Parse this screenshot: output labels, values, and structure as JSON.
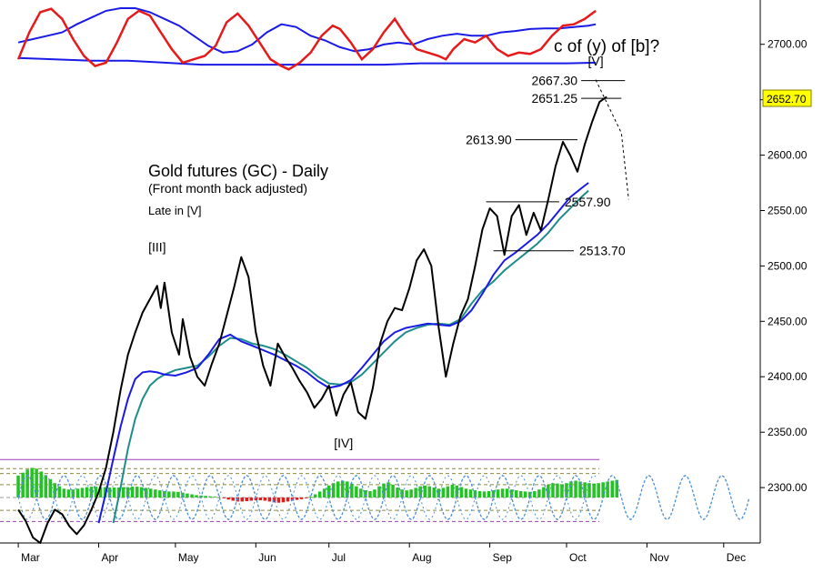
{
  "chart_data": {
    "type": "line",
    "title": "Gold futures (GC) - Daily",
    "subtitle": "(Front month back adjusted)",
    "note": "Late in [V]",
    "question": "c of (y) of [b]?",
    "last_price_label": "2652.70",
    "last_price": 2652.7,
    "ylim": [
      2250,
      2740
    ],
    "y_ticks": [
      {
        "value": 2700,
        "label": "2700.00"
      },
      {
        "value": 2650,
        "label": "2650.00"
      },
      {
        "value": 2600,
        "label": "2600.00"
      },
      {
        "value": 2550,
        "label": "2550.00"
      },
      {
        "value": 2500,
        "label": "2500.00"
      },
      {
        "value": 2450,
        "label": "2450.00"
      },
      {
        "value": 2400,
        "label": "2400.00"
      },
      {
        "value": 2350,
        "label": "2350.00"
      },
      {
        "value": 2300,
        "label": "2300.00"
      }
    ],
    "x_ticks": [
      {
        "index": 0,
        "label": "Mar"
      },
      {
        "index": 22,
        "label": "Apr"
      },
      {
        "index": 43,
        "label": "May"
      },
      {
        "index": 65,
        "label": "Jun"
      },
      {
        "index": 85,
        "label": "Jul"
      },
      {
        "index": 107,
        "label": "Aug"
      },
      {
        "index": 129,
        "label": "Sep"
      },
      {
        "index": 150,
        "label": "Oct"
      },
      {
        "index": 172,
        "label": "Nov"
      },
      {
        "index": 193,
        "label": "Dec"
      }
    ],
    "x_range": [
      -5,
      203
    ],
    "price_series": [
      [
        0,
        2280
      ],
      [
        2,
        2270
      ],
      [
        4,
        2255
      ],
      [
        6,
        2250
      ],
      [
        8,
        2268
      ],
      [
        10,
        2280
      ],
      [
        12,
        2276
      ],
      [
        14,
        2265
      ],
      [
        16,
        2258
      ],
      [
        18,
        2266
      ],
      [
        20,
        2280
      ],
      [
        22,
        2296
      ],
      [
        24,
        2318
      ],
      [
        26,
        2350
      ],
      [
        28,
        2388
      ],
      [
        30,
        2420
      ],
      [
        32,
        2440
      ],
      [
        34,
        2458
      ],
      [
        36,
        2470
      ],
      [
        38,
        2482
      ],
      [
        39,
        2462
      ],
      [
        40,
        2485
      ],
      [
        42,
        2440
      ],
      [
        44,
        2420
      ],
      [
        45,
        2452
      ],
      [
        47,
        2418
      ],
      [
        49,
        2400
      ],
      [
        51,
        2392
      ],
      [
        53,
        2412
      ],
      [
        55,
        2430
      ],
      [
        57,
        2455
      ],
      [
        59,
        2480
      ],
      [
        61,
        2508
      ],
      [
        63,
        2490
      ],
      [
        65,
        2440
      ],
      [
        67,
        2410
      ],
      [
        69,
        2392
      ],
      [
        71,
        2430
      ],
      [
        73,
        2418
      ],
      [
        75,
        2408
      ],
      [
        77,
        2396
      ],
      [
        79,
        2386
      ],
      [
        81,
        2372
      ],
      [
        83,
        2380
      ],
      [
        85,
        2392
      ],
      [
        87,
        2365
      ],
      [
        89,
        2384
      ],
      [
        91,
        2395
      ],
      [
        93,
        2368
      ],
      [
        95,
        2362
      ],
      [
        97,
        2390
      ],
      [
        99,
        2430
      ],
      [
        101,
        2450
      ],
      [
        103,
        2462
      ],
      [
        105,
        2460
      ],
      [
        107,
        2480
      ],
      [
        109,
        2505
      ],
      [
        111,
        2515
      ],
      [
        113,
        2500
      ],
      [
        115,
        2445
      ],
      [
        117,
        2400
      ],
      [
        119,
        2430
      ],
      [
        121,
        2455
      ],
      [
        123,
        2470
      ],
      [
        125,
        2500
      ],
      [
        127,
        2533
      ],
      [
        129,
        2552
      ],
      [
        131,
        2545
      ],
      [
        133,
        2510
      ],
      [
        135,
        2545
      ],
      [
        137,
        2555
      ],
      [
        139,
        2528
      ],
      [
        141,
        2548
      ],
      [
        143,
        2532
      ],
      [
        145,
        2560
      ],
      [
        147,
        2590
      ],
      [
        149,
        2612
      ],
      [
        151,
        2600
      ],
      [
        153,
        2585
      ],
      [
        155,
        2610
      ],
      [
        157,
        2630
      ],
      [
        159,
        2648
      ],
      [
        161,
        2652.7
      ]
    ],
    "ma_fast": [
      [
        22,
        2268
      ],
      [
        24,
        2296
      ],
      [
        26,
        2326
      ],
      [
        28,
        2355
      ],
      [
        30,
        2380
      ],
      [
        32,
        2398
      ],
      [
        34,
        2404
      ],
      [
        36,
        2405
      ],
      [
        38,
        2404
      ],
      [
        40,
        2402
      ],
      [
        43,
        2401
      ],
      [
        46,
        2404
      ],
      [
        49,
        2408
      ],
      [
        52,
        2420
      ],
      [
        55,
        2434
      ],
      [
        58,
        2438
      ],
      [
        61,
        2432
      ],
      [
        64,
        2428
      ],
      [
        67,
        2424
      ],
      [
        70,
        2420
      ],
      [
        73,
        2415
      ],
      [
        76,
        2410
      ],
      [
        79,
        2404
      ],
      [
        82,
        2396
      ],
      [
        85,
        2390
      ],
      [
        88,
        2392
      ],
      [
        91,
        2397
      ],
      [
        94,
        2408
      ],
      [
        97,
        2420
      ],
      [
        100,
        2432
      ],
      [
        103,
        2440
      ],
      [
        106,
        2444
      ],
      [
        109,
        2446
      ],
      [
        112,
        2448
      ],
      [
        115,
        2447
      ],
      [
        118,
        2446
      ],
      [
        121,
        2450
      ],
      [
        124,
        2460
      ],
      [
        127,
        2475
      ],
      [
        130,
        2492
      ],
      [
        133,
        2505
      ],
      [
        136,
        2512
      ],
      [
        139,
        2520
      ],
      [
        142,
        2528
      ],
      [
        145,
        2538
      ],
      [
        148,
        2550
      ],
      [
        151,
        2562
      ],
      [
        154,
        2570
      ],
      [
        156,
        2575
      ]
    ],
    "ma_slow": [
      [
        26,
        2268
      ],
      [
        28,
        2300
      ],
      [
        30,
        2335
      ],
      [
        32,
        2362
      ],
      [
        34,
        2380
      ],
      [
        36,
        2392
      ],
      [
        38,
        2398
      ],
      [
        40,
        2402
      ],
      [
        43,
        2406
      ],
      [
        46,
        2408
      ],
      [
        49,
        2410
      ],
      [
        52,
        2418
      ],
      [
        55,
        2428
      ],
      [
        58,
        2435
      ],
      [
        61,
        2434
      ],
      [
        64,
        2430
      ],
      [
        67,
        2428
      ],
      [
        70,
        2425
      ],
      [
        73,
        2420
      ],
      [
        76,
        2414
      ],
      [
        79,
        2408
      ],
      [
        82,
        2400
      ],
      [
        85,
        2394
      ],
      [
        88,
        2393
      ],
      [
        91,
        2395
      ],
      [
        94,
        2402
      ],
      [
        97,
        2412
      ],
      [
        100,
        2422
      ],
      [
        103,
        2432
      ],
      [
        106,
        2440
      ],
      [
        109,
        2444
      ],
      [
        112,
        2447
      ],
      [
        115,
        2448
      ],
      [
        118,
        2447
      ],
      [
        121,
        2452
      ],
      [
        124,
        2466
      ],
      [
        127,
        2478
      ],
      [
        130,
        2486
      ],
      [
        133,
        2496
      ],
      [
        136,
        2504
      ],
      [
        139,
        2512
      ],
      [
        142,
        2520
      ],
      [
        145,
        2530
      ],
      [
        148,
        2542
      ],
      [
        151,
        2552
      ],
      [
        154,
        2562
      ],
      [
        156,
        2568
      ]
    ],
    "level_lines": [
      {
        "label": "2667.30",
        "value": 2667.3,
        "from": 154,
        "to": 166,
        "label_side": "left"
      },
      {
        "label": "2651.25",
        "value": 2651.25,
        "from": 154,
        "to": 165,
        "label_side": "left"
      },
      {
        "label": "2613.90",
        "value": 2613.9,
        "from": 136,
        "to": 153,
        "label_side": "left"
      },
      {
        "label": "2557.90",
        "value": 2557.9,
        "from": 128,
        "to": 148,
        "label_side": "right"
      },
      {
        "label": "2513.70",
        "value": 2513.7,
        "from": 130,
        "to": 152,
        "label_side": "right"
      }
    ],
    "wave_labels": [
      {
        "label": "[III]",
        "x": 38,
        "y": 2513
      },
      {
        "label": "[IV]",
        "x": 89,
        "y": 2336
      },
      {
        "label": "[V]",
        "x": 158,
        "y": 2681
      }
    ],
    "projection": [
      [
        158,
        2668
      ],
      [
        165,
        2620
      ],
      [
        167,
        2560
      ]
    ],
    "top_indicator": {
      "red": [
        [
          0,
          0.2
        ],
        [
          3,
          0.6
        ],
        [
          6,
          0.9
        ],
        [
          9,
          0.95
        ],
        [
          12,
          0.8
        ],
        [
          15,
          0.5
        ],
        [
          18,
          0.25
        ],
        [
          21,
          0.1
        ],
        [
          24,
          0.15
        ],
        [
          27,
          0.45
        ],
        [
          30,
          0.8
        ],
        [
          33,
          0.92
        ],
        [
          36,
          0.85
        ],
        [
          39,
          0.6
        ],
        [
          42,
          0.35
        ],
        [
          45,
          0.15
        ],
        [
          48,
          0.2
        ],
        [
          51,
          0.25
        ],
        [
          54,
          0.4
        ],
        [
          57,
          0.75
        ],
        [
          60,
          0.88
        ],
        [
          63,
          0.7
        ],
        [
          66,
          0.45
        ],
        [
          69,
          0.2
        ],
        [
          72,
          0.1
        ],
        [
          74,
          0.05
        ],
        [
          77,
          0.15
        ],
        [
          80,
          0.3
        ],
        [
          83,
          0.55
        ],
        [
          86,
          0.7
        ],
        [
          88,
          0.65
        ],
        [
          91,
          0.45
        ],
        [
          94,
          0.2
        ],
        [
          97,
          0.35
        ],
        [
          100,
          0.6
        ],
        [
          103,
          0.8
        ],
        [
          106,
          0.55
        ],
        [
          109,
          0.35
        ],
        [
          112,
          0.3
        ],
        [
          115,
          0.25
        ],
        [
          117,
          0.2
        ],
        [
          119,
          0.35
        ],
        [
          122,
          0.5
        ],
        [
          125,
          0.45
        ],
        [
          128,
          0.55
        ],
        [
          131,
          0.35
        ],
        [
          134,
          0.25
        ],
        [
          137,
          0.3
        ],
        [
          140,
          0.28
        ],
        [
          143,
          0.35
        ],
        [
          146,
          0.55
        ],
        [
          149,
          0.7
        ],
        [
          152,
          0.72
        ],
        [
          155,
          0.8
        ],
        [
          158,
          0.92
        ]
      ],
      "blue": [
        [
          0,
          0.45
        ],
        [
          4,
          0.5
        ],
        [
          8,
          0.55
        ],
        [
          12,
          0.6
        ],
        [
          16,
          0.72
        ],
        [
          20,
          0.82
        ],
        [
          24,
          0.92
        ],
        [
          28,
          0.96
        ],
        [
          32,
          0.96
        ],
        [
          36,
          0.9
        ],
        [
          40,
          0.8
        ],
        [
          44,
          0.7
        ],
        [
          48,
          0.55
        ],
        [
          52,
          0.4
        ],
        [
          56,
          0.3
        ],
        [
          60,
          0.32
        ],
        [
          64,
          0.42
        ],
        [
          68,
          0.6
        ],
        [
          72,
          0.72
        ],
        [
          76,
          0.68
        ],
        [
          80,
          0.55
        ],
        [
          84,
          0.48
        ],
        [
          88,
          0.38
        ],
        [
          92,
          0.32
        ],
        [
          96,
          0.35
        ],
        [
          100,
          0.42
        ],
        [
          104,
          0.45
        ],
        [
          108,
          0.42
        ],
        [
          112,
          0.5
        ],
        [
          116,
          0.55
        ],
        [
          120,
          0.58
        ],
        [
          124,
          0.55
        ],
        [
          128,
          0.55
        ],
        [
          132,
          0.6
        ],
        [
          136,
          0.62
        ],
        [
          140,
          0.65
        ],
        [
          144,
          0.66
        ],
        [
          148,
          0.66
        ],
        [
          152,
          0.68
        ],
        [
          156,
          0.7
        ],
        [
          158,
          0.72
        ]
      ],
      "base": [
        [
          0,
          0.22
        ],
        [
          10,
          0.2
        ],
        [
          20,
          0.18
        ],
        [
          30,
          0.18
        ],
        [
          40,
          0.15
        ],
        [
          50,
          0.12
        ],
        [
          60,
          0.12
        ],
        [
          70,
          0.12
        ],
        [
          80,
          0.12
        ],
        [
          90,
          0.12
        ],
        [
          100,
          0.12
        ],
        [
          110,
          0.14
        ],
        [
          120,
          0.14
        ],
        [
          130,
          0.14
        ],
        [
          140,
          0.14
        ],
        [
          150,
          0.14
        ],
        [
          158,
          0.15
        ]
      ]
    },
    "bottom_indicator": {
      "histogram": [
        0.55,
        0.62,
        0.7,
        0.74,
        0.72,
        0.65,
        0.56,
        0.46,
        0.36,
        0.28,
        0.22,
        0.2,
        0.2,
        0.22,
        0.24,
        0.26,
        0.27,
        0.27,
        0.26,
        0.26,
        0.25,
        0.25,
        0.25,
        0.26,
        0.26,
        0.27,
        0.27,
        0.26,
        0.24,
        0.22,
        0.2,
        0.18,
        0.16,
        0.15,
        0.15,
        0.14,
        0.12,
        0.1,
        0.08,
        0.06,
        0.05,
        0.04,
        0.03,
        0.02,
        0.0,
        -0.02,
        -0.05,
        -0.08,
        -0.1,
        -0.1,
        -0.09,
        -0.08,
        -0.07,
        -0.07,
        -0.08,
        -0.1,
        -0.12,
        -0.13,
        -0.12,
        -0.1,
        -0.08,
        -0.06,
        -0.04,
        -0.02,
        0.02,
        0.08,
        0.15,
        0.22,
        0.3,
        0.36,
        0.4,
        0.42,
        0.4,
        0.35,
        0.28,
        0.22,
        0.18,
        0.16,
        0.2,
        0.28,
        0.35,
        0.38,
        0.32,
        0.25,
        0.2,
        0.18,
        0.2,
        0.24,
        0.28,
        0.3,
        0.28,
        0.25,
        0.22,
        0.24,
        0.28,
        0.32,
        0.3,
        0.26,
        0.22,
        0.2,
        0.18,
        0.16,
        0.15,
        0.16,
        0.18,
        0.2,
        0.22,
        0.22,
        0.2,
        0.18,
        0.16,
        0.15,
        0.14,
        0.16,
        0.2,
        0.26,
        0.32,
        0.36,
        0.35,
        0.33,
        0.36,
        0.4,
        0.42,
        0.4,
        0.38,
        0.36,
        0.35,
        0.36,
        0.38,
        0.4,
        0.42,
        0.44
      ],
      "hist_start": 0,
      "hist_step": 1.25,
      "cycle_period": 10,
      "cycle_end": 200,
      "ref_levels": [
        0.95,
        0.72,
        0.6,
        0.32,
        0.0,
        -0.32,
        -0.6
      ]
    },
    "colors": {
      "price": "#000000",
      "ma_fast": "#1a1ae6",
      "ma_slow": "#1f8c8c",
      "indicator_red": "#e61a1a",
      "indicator_blue": "#1a1ae6",
      "hist_positive": "#22c322",
      "hist_negative": "#e61a1a",
      "cycle": "#4a8fd4",
      "ref_line_purple": "#9b3fb3",
      "ref_line_olive": "#8c8c3f",
      "label_highlight": "#ffff00"
    }
  }
}
